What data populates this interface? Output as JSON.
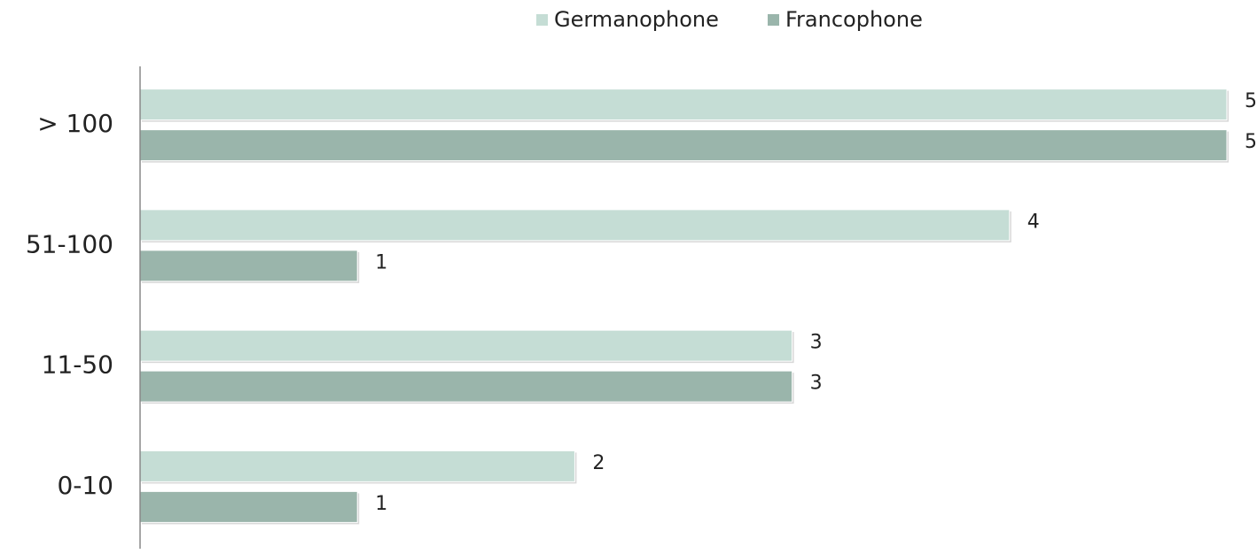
{
  "chart_data": {
    "type": "hbar",
    "categories": [
      "> 100",
      "51-100",
      "11-50",
      "0-10"
    ],
    "series": [
      {
        "name": "Germanophone",
        "color": "#c5ddd5",
        "values": [
          5,
          4,
          3,
          2
        ]
      },
      {
        "name": "Francophone",
        "color": "#9ab5ab",
        "values": [
          5,
          1,
          3,
          1
        ]
      }
    ],
    "xlim": [
      0,
      5
    ],
    "legend": "top"
  }
}
